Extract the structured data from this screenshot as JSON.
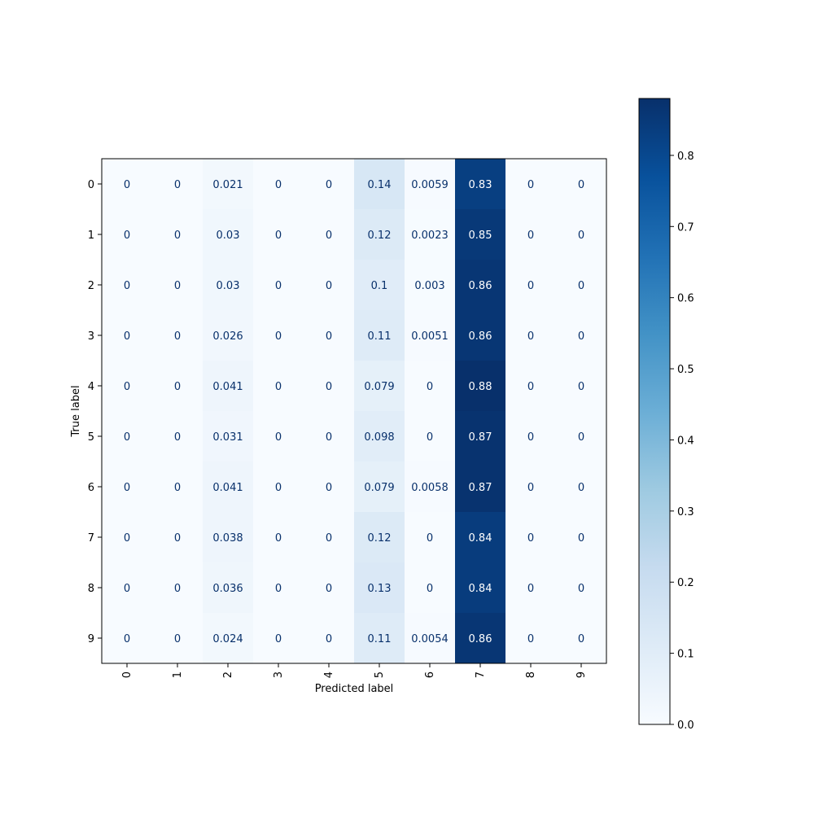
{
  "chart_data": {
    "type": "heatmap",
    "title": "",
    "xlabel": "Predicted label",
    "ylabel": "True label",
    "x_categories": [
      "0",
      "1",
      "2",
      "3",
      "4",
      "5",
      "6",
      "7",
      "8",
      "9"
    ],
    "y_categories": [
      "0",
      "1",
      "2",
      "3",
      "4",
      "5",
      "6",
      "7",
      "8",
      "9"
    ],
    "x_tick_rotation": "vertical",
    "cell_labels": [
      [
        "0",
        "0",
        "0.021",
        "0",
        "0",
        "0.14",
        "0.0059",
        "0.83",
        "0",
        "0"
      ],
      [
        "0",
        "0",
        "0.03",
        "0",
        "0",
        "0.12",
        "0.0023",
        "0.85",
        "0",
        "0"
      ],
      [
        "0",
        "0",
        "0.03",
        "0",
        "0",
        "0.1",
        "0.003",
        "0.86",
        "0",
        "0"
      ],
      [
        "0",
        "0",
        "0.026",
        "0",
        "0",
        "0.11",
        "0.0051",
        "0.86",
        "0",
        "0"
      ],
      [
        "0",
        "0",
        "0.041",
        "0",
        "0",
        "0.079",
        "0",
        "0.88",
        "0",
        "0"
      ],
      [
        "0",
        "0",
        "0.031",
        "0",
        "0",
        "0.098",
        "0",
        "0.87",
        "0",
        "0"
      ],
      [
        "0",
        "0",
        "0.041",
        "0",
        "0",
        "0.079",
        "0.0058",
        "0.87",
        "0",
        "0"
      ],
      [
        "0",
        "0",
        "0.038",
        "0",
        "0",
        "0.12",
        "0",
        "0.84",
        "0",
        "0"
      ],
      [
        "0",
        "0",
        "0.036",
        "0",
        "0",
        "0.13",
        "0",
        "0.84",
        "0",
        "0"
      ],
      [
        "0",
        "0",
        "0.024",
        "0",
        "0",
        "0.11",
        "0.0054",
        "0.86",
        "0",
        "0"
      ]
    ],
    "values": [
      [
        0,
        0,
        0.021,
        0,
        0,
        0.14,
        0.0059,
        0.83,
        0,
        0
      ],
      [
        0,
        0,
        0.03,
        0,
        0,
        0.12,
        0.0023,
        0.85,
        0,
        0
      ],
      [
        0,
        0,
        0.03,
        0,
        0,
        0.1,
        0.003,
        0.86,
        0,
        0
      ],
      [
        0,
        0,
        0.026,
        0,
        0,
        0.11,
        0.0051,
        0.86,
        0,
        0
      ],
      [
        0,
        0,
        0.041,
        0,
        0,
        0.079,
        0,
        0.88,
        0,
        0
      ],
      [
        0,
        0,
        0.031,
        0,
        0,
        0.098,
        0,
        0.87,
        0,
        0
      ],
      [
        0,
        0,
        0.041,
        0,
        0,
        0.079,
        0.0058,
        0.87,
        0,
        0
      ],
      [
        0,
        0,
        0.038,
        0,
        0,
        0.12,
        0,
        0.84,
        0,
        0
      ],
      [
        0,
        0,
        0.036,
        0,
        0,
        0.13,
        0,
        0.84,
        0,
        0
      ],
      [
        0,
        0,
        0.024,
        0,
        0,
        0.11,
        0.0054,
        0.86,
        0,
        0
      ]
    ],
    "colormap": "Blues",
    "colormap_stops": [
      "#f7fbff",
      "#deebf7",
      "#c6dbef",
      "#9ecae1",
      "#6baed6",
      "#4292c6",
      "#2171b5",
      "#08519c",
      "#08306b"
    ],
    "text_color_light": "#ffffff",
    "text_color_dark": "#08306b",
    "colorbar": {
      "range": [
        0,
        0.88
      ],
      "ticks": [
        0.0,
        0.1,
        0.2,
        0.3,
        0.4,
        0.5,
        0.6,
        0.7,
        0.8
      ],
      "tick_labels": [
        "0.0",
        "0.1",
        "0.2",
        "0.3",
        "0.4",
        "0.5",
        "0.6",
        "0.7",
        "0.8"
      ],
      "placement": "right"
    },
    "grid": false,
    "legend": "none"
  }
}
